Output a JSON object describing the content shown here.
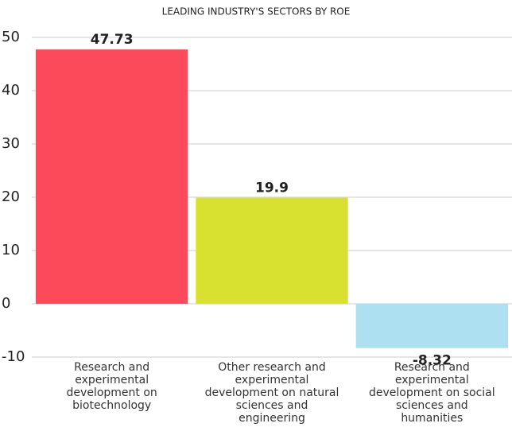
{
  "chart_data": {
    "type": "bar",
    "title": "LEADING INDUSTRY'S SECTORS BY ROE",
    "categories": [
      "Research and experimental development on biotechnology",
      "Other research and experimental development on natural sciences and engineering",
      "Research and experimental development on social sciences and humanities"
    ],
    "values": [
      47.73,
      19.9,
      -8.32
    ],
    "colors": [
      "#fc4a5a",
      "#d8e030",
      "#ade1f2"
    ],
    "ylim": [
      -10,
      50
    ],
    "yticks": [
      -10,
      0,
      10,
      20,
      30,
      40,
      50
    ],
    "grid": true
  }
}
